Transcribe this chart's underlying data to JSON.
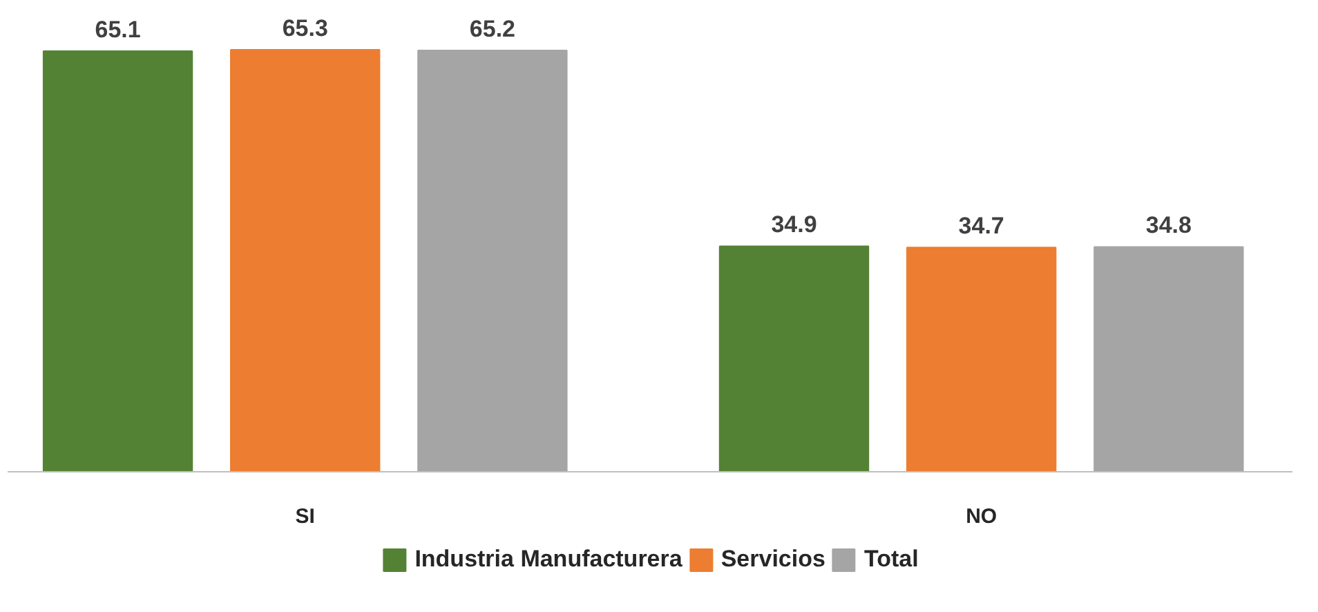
{
  "chart_data": {
    "type": "bar",
    "categories": [
      "SI",
      "NO"
    ],
    "series": [
      {
        "name": "Industria Manufacturera",
        "color": "#548235",
        "values": [
          65.1,
          34.9
        ]
      },
      {
        "name": "Servicios",
        "color": "#ed7d31",
        "values": [
          65.3,
          34.7
        ]
      },
      {
        "name": "Total",
        "color": "#a5a5a5",
        "values": [
          65.2,
          34.8
        ]
      }
    ],
    "data_labels": true,
    "legend": "bottom",
    "grid": false,
    "tick_labels": "x"
  }
}
